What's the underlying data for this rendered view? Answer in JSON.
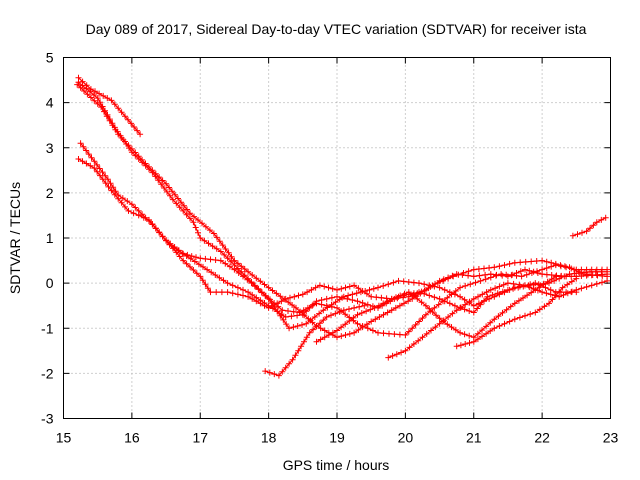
{
  "chart_data": {
    "type": "scatter",
    "title": "Day 089 of 2017, Sidereal Day-to-day VTEC variation (SDTVAR) for receiver ista",
    "xlabel": "GPS time / hours",
    "ylabel": "SDTVAR / TECUs",
    "xlim": [
      15,
      23
    ],
    "ylim": [
      -3,
      5
    ],
    "xticks": [
      "15",
      "16",
      "17",
      "18",
      "19",
      "20",
      "21",
      "22",
      "23"
    ],
    "yticks": [
      "-3",
      "-2",
      "-1",
      "0",
      "1",
      "2",
      "3",
      "4",
      "5"
    ],
    "grid": true,
    "marker": "+",
    "color": "#ff0000",
    "series": [
      {
        "name": "track-1",
        "points": [
          [
            15.22,
            4.55
          ],
          [
            15.4,
            4.3
          ],
          [
            15.7,
            4.05
          ],
          [
            15.9,
            3.7
          ],
          [
            16.12,
            3.3
          ]
        ]
      },
      {
        "name": "track-2",
        "points": [
          [
            15.2,
            4.4
          ],
          [
            15.55,
            3.9
          ],
          [
            15.8,
            3.3
          ],
          [
            16.2,
            2.65
          ],
          [
            16.5,
            2.2
          ],
          [
            16.85,
            1.55
          ],
          [
            17.2,
            1.1
          ],
          [
            17.5,
            0.5
          ],
          [
            17.7,
            0.25
          ],
          [
            18.0,
            -0.1
          ],
          [
            18.4,
            -0.55
          ],
          [
            18.7,
            -0.95
          ],
          [
            19.0,
            -1.2
          ],
          [
            19.25,
            -1.1
          ],
          [
            19.5,
            -0.85
          ],
          [
            19.8,
            -0.6
          ],
          [
            20.1,
            -0.35
          ],
          [
            20.4,
            -0.05
          ],
          [
            20.7,
            0.15
          ],
          [
            21.0,
            0.3
          ],
          [
            21.3,
            0.35
          ],
          [
            21.6,
            0.45
          ],
          [
            22.0,
            0.5
          ],
          [
            22.4,
            0.35
          ],
          [
            22.6,
            0.2
          ],
          [
            22.95,
            0.15
          ]
        ]
      },
      {
        "name": "track-3",
        "points": [
          [
            15.22,
            4.45
          ],
          [
            15.5,
            4.1
          ],
          [
            15.75,
            3.45
          ],
          [
            16.0,
            2.9
          ],
          [
            16.3,
            2.45
          ],
          [
            16.6,
            1.85
          ],
          [
            16.9,
            1.35
          ],
          [
            17.0,
            1.0
          ],
          [
            17.3,
            0.7
          ],
          [
            17.6,
            0.25
          ],
          [
            17.9,
            -0.2
          ],
          [
            18.2,
            -0.6
          ],
          [
            18.45,
            -0.65
          ],
          [
            18.7,
            -0.45
          ],
          [
            19.0,
            -0.55
          ],
          [
            19.3,
            -0.9
          ],
          [
            19.6,
            -1.1
          ],
          [
            20.0,
            -1.15
          ],
          [
            20.3,
            -0.7
          ],
          [
            20.55,
            -0.4
          ],
          [
            20.8,
            -0.1
          ],
          [
            21.1,
            0.05
          ],
          [
            21.4,
            0.2
          ],
          [
            21.7,
            0.15
          ],
          [
            22.0,
            0.3
          ],
          [
            22.2,
            0.4
          ],
          [
            22.5,
            0.3
          ],
          [
            22.95,
            0.3
          ]
        ]
      },
      {
        "name": "track-4",
        "points": [
          [
            15.25,
            3.1
          ],
          [
            15.45,
            2.7
          ],
          [
            15.65,
            2.3
          ],
          [
            15.8,
            1.95
          ],
          [
            16.0,
            1.75
          ],
          [
            16.3,
            1.3
          ],
          [
            16.55,
            0.85
          ],
          [
            16.8,
            0.6
          ],
          [
            17.1,
            0.3
          ],
          [
            17.4,
            0.0
          ],
          [
            17.7,
            -0.2
          ],
          [
            18.0,
            -0.5
          ],
          [
            18.25,
            -0.75
          ],
          [
            18.5,
            -0.7
          ],
          [
            18.7,
            -0.4
          ],
          [
            19.0,
            -0.3
          ],
          [
            19.3,
            -0.4
          ],
          [
            19.6,
            -0.55
          ],
          [
            19.9,
            -0.3
          ],
          [
            20.2,
            -0.2
          ],
          [
            20.5,
            -0.35
          ],
          [
            20.8,
            -0.55
          ],
          [
            21.0,
            -0.65
          ],
          [
            21.2,
            -0.3
          ],
          [
            21.5,
            -0.15
          ],
          [
            21.8,
            -0.05
          ],
          [
            22.1,
            0.0
          ],
          [
            22.4,
            0.2
          ],
          [
            22.7,
            0.25
          ],
          [
            22.95,
            0.25
          ]
        ]
      },
      {
        "name": "track-5",
        "points": [
          [
            15.22,
            2.75
          ],
          [
            15.45,
            2.55
          ],
          [
            15.7,
            2.05
          ],
          [
            15.95,
            1.6
          ],
          [
            16.25,
            1.4
          ],
          [
            16.5,
            0.95
          ],
          [
            16.75,
            0.65
          ],
          [
            17.0,
            0.55
          ],
          [
            17.3,
            0.5
          ],
          [
            17.5,
            0.3
          ],
          [
            17.75,
            0.0
          ],
          [
            18.0,
            -0.35
          ],
          [
            18.3,
            -1.0
          ],
          [
            18.55,
            -0.9
          ],
          [
            18.8,
            -0.6
          ],
          [
            19.1,
            -0.3
          ],
          [
            19.35,
            -0.2
          ],
          [
            19.6,
            -0.1
          ],
          [
            19.9,
            0.05
          ],
          [
            20.2,
            0.0
          ],
          [
            20.5,
            -0.1
          ],
          [
            20.8,
            -0.3
          ],
          [
            21.0,
            -0.5
          ],
          [
            21.3,
            -0.3
          ],
          [
            21.6,
            -0.1
          ],
          [
            21.9,
            0.0
          ],
          [
            22.2,
            -0.2
          ],
          [
            22.5,
            -0.2
          ]
        ]
      },
      {
        "name": "track-6",
        "points": [
          [
            16.5,
            0.95
          ],
          [
            16.75,
            0.5
          ],
          [
            17.0,
            0.15
          ],
          [
            17.15,
            -0.2
          ],
          [
            17.4,
            -0.2
          ],
          [
            17.7,
            -0.3
          ],
          [
            18.0,
            -0.55
          ],
          [
            18.25,
            -0.35
          ],
          [
            18.5,
            -0.25
          ],
          [
            18.75,
            -0.05
          ],
          [
            19.0,
            -0.15
          ],
          [
            19.25,
            -0.05
          ],
          [
            19.5,
            -0.3
          ],
          [
            19.8,
            -0.35
          ],
          [
            20.05,
            -0.2
          ],
          [
            20.3,
            -0.5
          ],
          [
            20.55,
            -0.85
          ],
          [
            20.8,
            -1.1
          ],
          [
            21.0,
            -1.2
          ],
          [
            21.3,
            -0.8
          ],
          [
            21.6,
            -0.45
          ],
          [
            21.9,
            -0.15
          ],
          [
            22.2,
            0.15
          ],
          [
            22.5,
            0.15
          ],
          [
            22.95,
            0.2
          ]
        ]
      },
      {
        "name": "track-7",
        "points": [
          [
            18.7,
            -1.3
          ],
          [
            19.0,
            -1.05
          ],
          [
            19.3,
            -0.7
          ],
          [
            19.55,
            -0.55
          ],
          [
            19.8,
            -0.35
          ],
          [
            20.05,
            -0.3
          ],
          [
            20.3,
            -0.15
          ],
          [
            20.5,
            0.05
          ],
          [
            20.75,
            0.2
          ],
          [
            21.0,
            0.15
          ],
          [
            21.25,
            0.2
          ],
          [
            21.5,
            0.15
          ],
          [
            21.75,
            0.3
          ],
          [
            22.0,
            0.2
          ],
          [
            22.35,
            0.15
          ]
        ]
      },
      {
        "name": "track-8",
        "points": [
          [
            19.75,
            -1.65
          ],
          [
            20.0,
            -1.5
          ],
          [
            20.25,
            -1.2
          ],
          [
            20.5,
            -0.9
          ],
          [
            20.75,
            -0.6
          ],
          [
            21.0,
            -0.35
          ],
          [
            21.25,
            -0.15
          ],
          [
            21.5,
            0.0
          ],
          [
            21.75,
            -0.05
          ],
          [
            22.0,
            -0.2
          ],
          [
            22.25,
            -0.3
          ],
          [
            22.5,
            -0.15
          ],
          [
            22.95,
            0.05
          ]
        ]
      },
      {
        "name": "track-9",
        "points": [
          [
            20.75,
            -1.4
          ],
          [
            21.0,
            -1.3
          ],
          [
            21.3,
            -1.0
          ],
          [
            21.6,
            -0.8
          ],
          [
            21.9,
            -0.65
          ],
          [
            22.1,
            -0.45
          ],
          [
            22.3,
            -0.1
          ],
          [
            22.5,
            0.1
          ]
        ]
      },
      {
        "name": "track-10",
        "points": [
          [
            17.95,
            -1.95
          ],
          [
            18.15,
            -2.05
          ],
          [
            18.35,
            -1.7
          ],
          [
            18.6,
            -1.1
          ],
          [
            18.85,
            -0.75
          ],
          [
            19.1,
            -0.6
          ],
          [
            19.4,
            -0.5
          ]
        ]
      },
      {
        "name": "track-11",
        "points": [
          [
            22.45,
            1.05
          ],
          [
            22.65,
            1.15
          ],
          [
            22.8,
            1.35
          ],
          [
            22.93,
            1.45
          ]
        ]
      }
    ]
  }
}
